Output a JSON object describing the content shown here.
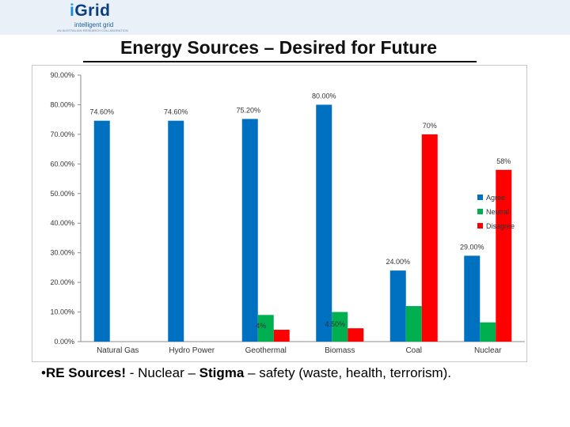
{
  "header": {
    "logo_prefix": "i",
    "logo_name": "Grid",
    "logo_tagline": "intelligent grid",
    "logo_subtitle": "AN AUSTRALIAN RESEARCH COLLABORATION"
  },
  "title": "Energy Sources – Desired for Future",
  "bullet": {
    "marker": "•",
    "bold_text": "RE Sources!",
    "rest_text": " - Nuclear – ",
    "bold2_text": "Stigma",
    "end_text": " – safety (waste, health, terrorism)."
  },
  "colors": {
    "accent": "#0a3d82",
    "agree": "#0070c0",
    "neutral": "#00b050",
    "disagree": "#ff0000"
  },
  "chart_data": {
    "type": "bar",
    "categories": [
      "Natural Gas",
      "Hydro Power",
      "Geothermal",
      "Biomass",
      "Coal",
      "Nuclear"
    ],
    "series": [
      {
        "name": "Agree",
        "color": "#0070c0",
        "values": [
          74.6,
          74.6,
          75.2,
          80.0,
          24.0,
          29.0
        ]
      },
      {
        "name": "Neutral",
        "color": "#00b050",
        "values": [
          0,
          0,
          9.0,
          10.0,
          12.0,
          6.5
        ]
      },
      {
        "name": "Disagree",
        "color": "#ff0000",
        "values": [
          0,
          0,
          4.0,
          4.5,
          70.0,
          58.0
        ]
      }
    ],
    "data_labels": [
      {
        "series": 0,
        "index": 0,
        "text": "74.60%"
      },
      {
        "series": 0,
        "index": 1,
        "text": "74.60%"
      },
      {
        "series": 0,
        "index": 2,
        "text": "75.20%"
      },
      {
        "series": 0,
        "index": 3,
        "text": "80.00%"
      },
      {
        "series": 2,
        "index": 4,
        "text": "70%"
      },
      {
        "series": 2,
        "index": 5,
        "text": "58%"
      },
      {
        "series": 0,
        "index": 4,
        "text": "24.00%"
      },
      {
        "series": 0,
        "index": 5,
        "text": "29.00%"
      },
      {
        "series": 2,
        "index": 2,
        "text": "4%"
      },
      {
        "series": 2,
        "index": 3,
        "text": "4.50%"
      }
    ],
    "ylim": [
      0,
      90
    ],
    "yticks": [
      {
        "value": 0,
        "label": "0.00%"
      },
      {
        "value": 10,
        "label": "10.00%"
      },
      {
        "value": 20,
        "label": "20.00%"
      },
      {
        "value": 30,
        "label": "30.00%"
      },
      {
        "value": 40,
        "label": "40.00%"
      },
      {
        "value": 50,
        "label": "50.00%"
      },
      {
        "value": 60,
        "label": "60.00%"
      },
      {
        "value": 70,
        "label": "70.00%"
      },
      {
        "value": 80,
        "label": "80.00%"
      },
      {
        "value": 90,
        "label": "90.00%"
      }
    ],
    "grid": false,
    "legend_position": "right"
  }
}
